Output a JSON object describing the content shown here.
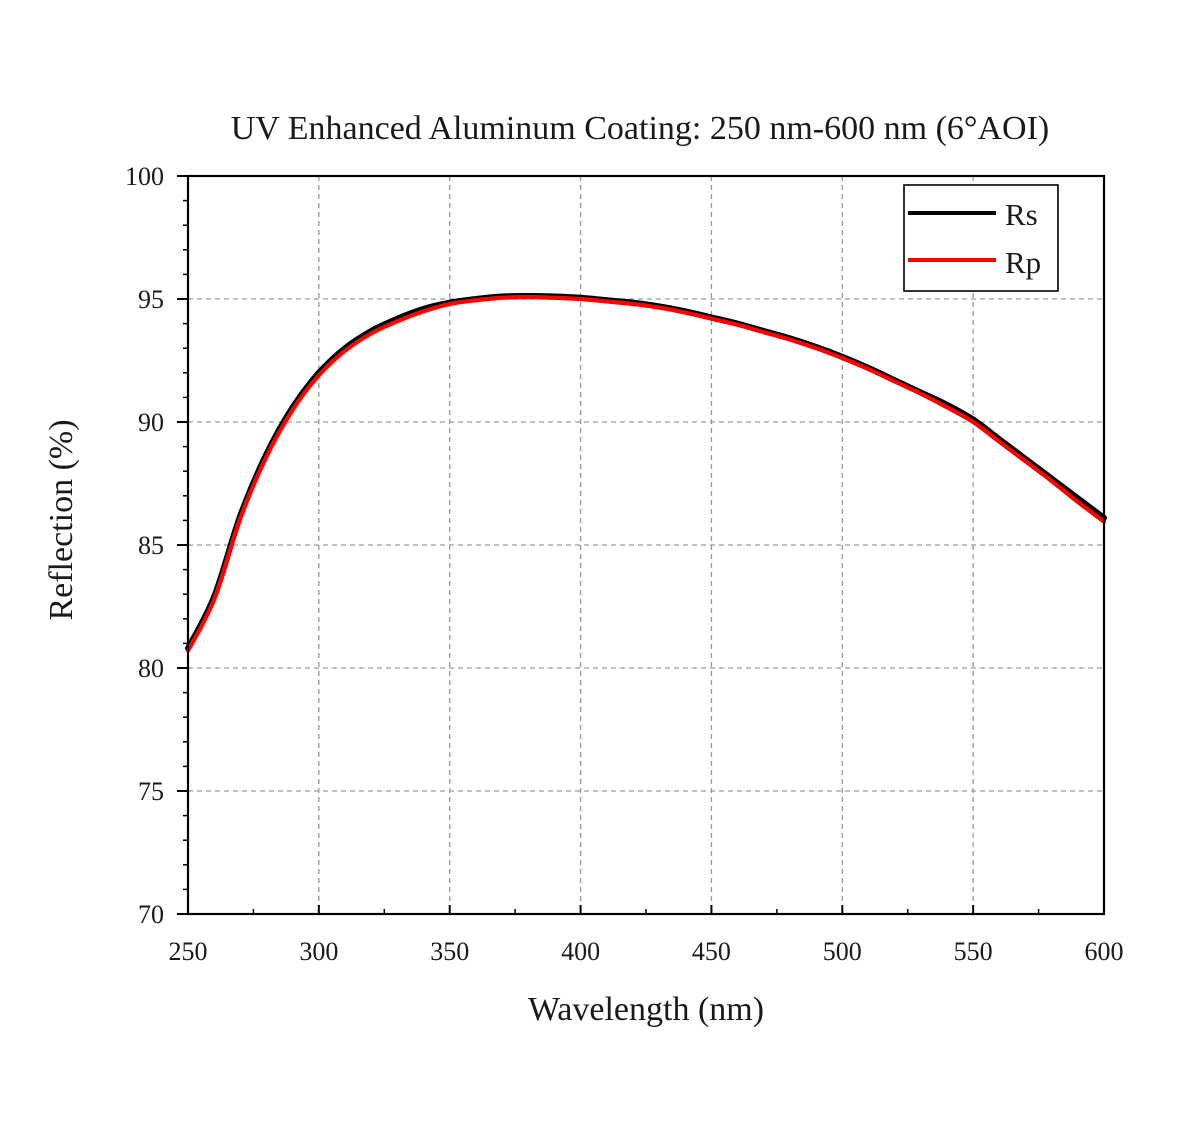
{
  "chart_data": {
    "type": "line",
    "title": "UV Enhanced Aluminum Coating: 250 nm-600 nm (6°AOI)",
    "xlabel": "Wavelength (nm)",
    "ylabel": "Reflection (%)",
    "xlim": [
      250,
      600
    ],
    "ylim": [
      70,
      100
    ],
    "xticks": [
      250,
      300,
      350,
      400,
      450,
      500,
      550,
      600
    ],
    "yticks": [
      70,
      75,
      80,
      85,
      90,
      95,
      100
    ],
    "grid": true,
    "legend_position": "top-right",
    "x": [
      250,
      260,
      270,
      280,
      290,
      300,
      310,
      320,
      330,
      340,
      350,
      360,
      370,
      380,
      390,
      400,
      410,
      420,
      430,
      440,
      450,
      460,
      470,
      480,
      490,
      500,
      510,
      520,
      530,
      540,
      550,
      560,
      570,
      580,
      590,
      600
    ],
    "series": [
      {
        "name": "Rs",
        "color": "#000000",
        "values": [
          80.8,
          82.9,
          86.2,
          88.7,
          90.6,
          92.0,
          93.0,
          93.7,
          94.2,
          94.6,
          94.85,
          95.0,
          95.1,
          95.12,
          95.1,
          95.05,
          94.95,
          94.85,
          94.7,
          94.5,
          94.25,
          94.0,
          93.7,
          93.4,
          93.05,
          92.65,
          92.2,
          91.7,
          91.2,
          90.7,
          90.1,
          89.3,
          88.5,
          87.7,
          86.9,
          86.1
        ]
      },
      {
        "name": "Rp",
        "color": "#ff0000",
        "values": [
          80.7,
          82.8,
          86.1,
          88.6,
          90.5,
          91.9,
          92.9,
          93.6,
          94.1,
          94.5,
          94.8,
          94.95,
          95.05,
          95.08,
          95.05,
          95.0,
          94.9,
          94.8,
          94.65,
          94.45,
          94.2,
          93.95,
          93.65,
          93.35,
          93.0,
          92.6,
          92.15,
          91.65,
          91.15,
          90.6,
          90.0,
          89.2,
          88.4,
          87.6,
          86.75,
          85.95
        ]
      }
    ]
  }
}
